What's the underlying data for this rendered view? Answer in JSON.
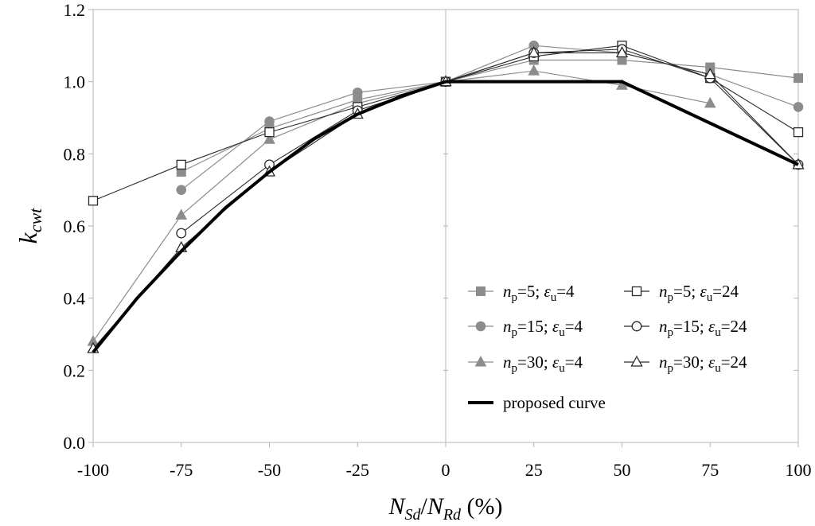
{
  "chart_data": {
    "type": "line",
    "xlabel": {
      "main": "N",
      "sub1": "Sd",
      "sep": "/",
      "main2": "N",
      "sub2": "Rd",
      "unit": " (%)"
    },
    "ylabel": {
      "main": "k",
      "sub": "cwt"
    },
    "xlim": [
      -100,
      100
    ],
    "ylim": [
      0.0,
      1.2
    ],
    "x_ticks": [
      -100,
      -75,
      -50,
      -25,
      0,
      25,
      50,
      75,
      100
    ],
    "x_tick_labels": [
      "-100",
      "-75",
      "-50",
      "-25",
      "0",
      "25",
      "50",
      "75",
      "100"
    ],
    "y_ticks": [
      0.0,
      0.2,
      0.4,
      0.6,
      0.8,
      1.0,
      1.2
    ],
    "y_tick_labels": [
      "0.0",
      "0.2",
      "0.4",
      "0.6",
      "0.8",
      "1.0",
      "1.2"
    ],
    "x": [
      -100,
      -75,
      -50,
      -25,
      0,
      25,
      50,
      75,
      100
    ],
    "legend_position": "bottom-right",
    "series": [
      {
        "name": "np=5; εu=4",
        "np": "5",
        "eu": "4",
        "marker": "square",
        "filled": true,
        "color": "#8c8c8c",
        "values": [
          null,
          0.75,
          0.87,
          0.95,
          1.0,
          1.06,
          1.06,
          1.04,
          1.01
        ]
      },
      {
        "name": "np=15; εu=4",
        "np": "15",
        "eu": "4",
        "marker": "circle",
        "filled": true,
        "color": "#8c8c8c",
        "values": [
          null,
          0.7,
          0.89,
          0.97,
          1.0,
          1.1,
          1.08,
          1.02,
          0.93
        ]
      },
      {
        "name": "np=30; εu=4",
        "np": "30",
        "eu": "4",
        "marker": "triangle",
        "filled": true,
        "color": "#8c8c8c",
        "values": [
          0.28,
          0.63,
          0.84,
          0.94,
          1.0,
          1.03,
          0.99,
          0.94,
          null
        ]
      },
      {
        "name": "np=5; εu=24",
        "np": "5",
        "eu": "24",
        "marker": "square",
        "filled": false,
        "color": "#2b2b2b",
        "values": [
          0.67,
          0.77,
          0.86,
          0.93,
          1.0,
          1.07,
          1.1,
          1.01,
          0.86
        ]
      },
      {
        "name": "np=15; εu=24",
        "np": "15",
        "eu": "24",
        "marker": "circle",
        "filled": false,
        "color": "#2b2b2b",
        "values": [
          null,
          0.58,
          0.77,
          0.92,
          1.0,
          1.08,
          1.09,
          1.01,
          0.77
        ]
      },
      {
        "name": "np=30; εu=24",
        "np": "30",
        "eu": "24",
        "marker": "triangle",
        "filled": false,
        "color": "#2b2b2b",
        "values": [
          0.26,
          0.54,
          0.75,
          0.91,
          1.0,
          1.08,
          1.08,
          1.02,
          0.77
        ]
      }
    ],
    "proposed_curve": {
      "name": "proposed curve",
      "color": "#000000",
      "x": [
        -100,
        -87.5,
        -75,
        -62.5,
        -50,
        -37.5,
        -25,
        -12.5,
        0,
        50,
        100
      ],
      "values": [
        0.25,
        0.4,
        0.53,
        0.65,
        0.75,
        0.84,
        0.91,
        0.96,
        1.0,
        1.0,
        0.77
      ]
    }
  }
}
